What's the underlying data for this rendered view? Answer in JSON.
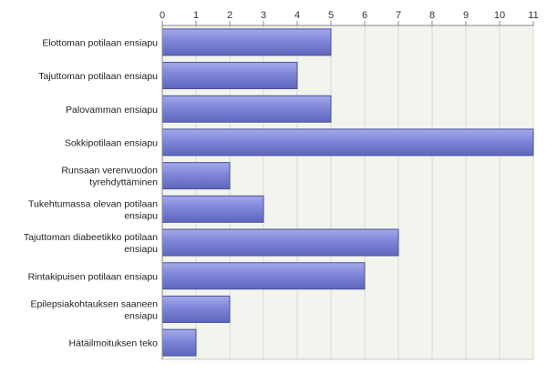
{
  "chart_data": {
    "type": "bar",
    "orientation": "horizontal",
    "x_axis_position": "top",
    "grid": true,
    "xlim": [
      0,
      11
    ],
    "x_ticks": [
      0,
      1,
      2,
      3,
      4,
      5,
      6,
      7,
      8,
      9,
      10,
      11
    ],
    "categories": [
      [
        "Elottoman potilaan ensiapu"
      ],
      [
        "Tajuttoman potilaan ensiapu"
      ],
      [
        "Palovamman ensiapu"
      ],
      [
        "Sokkipotilaan ensiapu"
      ],
      [
        "Runsaan verenvuodon",
        "tyrehdyttäminen"
      ],
      [
        "Tukehtumassa olevan potilaan",
        "ensiapu"
      ],
      [
        "Tajuttoman diabeetikko potilaan",
        "ensiapu"
      ],
      [
        "Rintakipuisen potilaan ensiapu"
      ],
      [
        "Epilepsiakohtauksen saaneen",
        "ensiapu"
      ],
      [
        "Hätäilmoituksen teko"
      ]
    ],
    "values": [
      5,
      4,
      5,
      11,
      2,
      3,
      7,
      6,
      2,
      1
    ],
    "bar_color": "#7b82d6",
    "bar_edge_color": "#4a5196",
    "plot_background": "#f2f4ee",
    "grid_color": "#d8dcd2"
  }
}
